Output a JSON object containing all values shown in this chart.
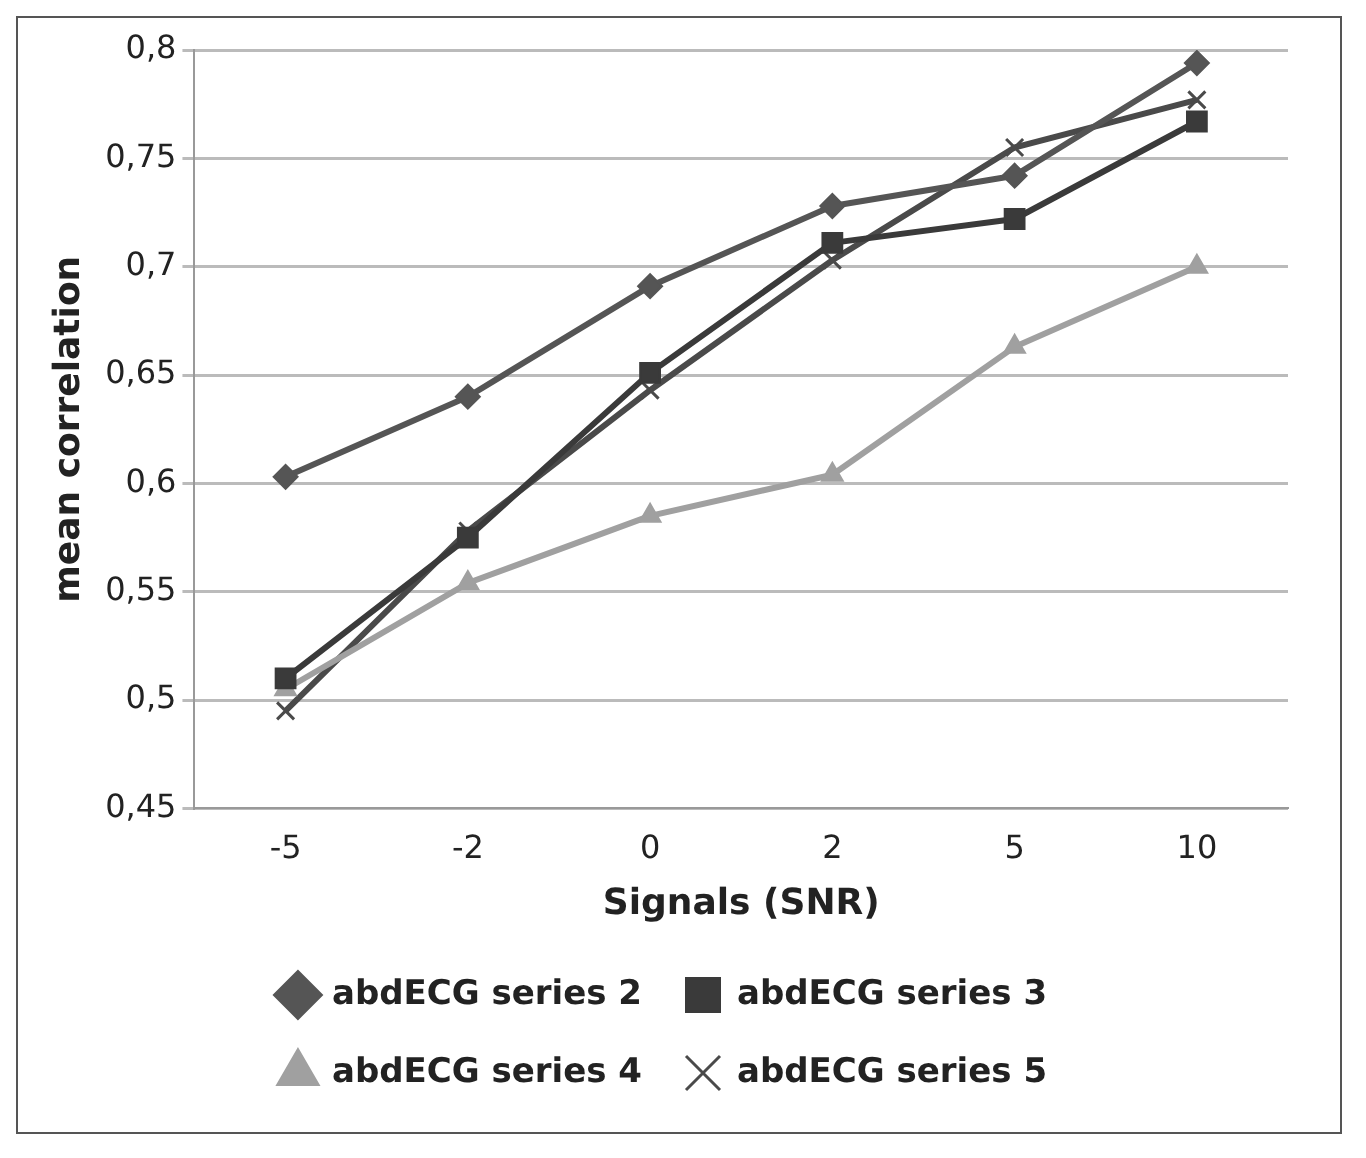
{
  "chart_data": {
    "type": "line",
    "xlabel": "Signals (SNR)",
    "ylabel": "mean correlation",
    "categories": [
      "-5",
      "-2",
      "0",
      "2",
      "5",
      "10"
    ],
    "series": [
      {
        "name": "abdECG series 2",
        "color": "#555555",
        "marker": "diamond",
        "values": [
          0.603,
          0.64,
          0.691,
          0.728,
          0.742,
          0.794
        ]
      },
      {
        "name": "abdECG series 3",
        "color": "#3a3a3a",
        "marker": "square",
        "values": [
          0.51,
          0.575,
          0.651,
          0.711,
          0.722,
          0.767
        ]
      },
      {
        "name": "abdECG series 4",
        "color": "#a0a0a0",
        "marker": "triangle",
        "values": [
          0.505,
          0.554,
          0.585,
          0.604,
          0.663,
          0.7
        ]
      },
      {
        "name": "abdECG series 5",
        "color": "#4a4a4a",
        "marker": "cross",
        "values": [
          0.495,
          0.578,
          0.643,
          0.703,
          0.755,
          0.777
        ]
      }
    ],
    "ylim": [
      0.45,
      0.8
    ],
    "yticks": [
      {
        "value": 0.45,
        "label": "0,45"
      },
      {
        "value": 0.5,
        "label": "0,5"
      },
      {
        "value": 0.55,
        "label": "0,55"
      },
      {
        "value": 0.6,
        "label": "0,6"
      },
      {
        "value": 0.65,
        "label": "0,65"
      },
      {
        "value": 0.7,
        "label": "0,7"
      },
      {
        "value": 0.75,
        "label": "0,75"
      },
      {
        "value": 0.8,
        "label": "0,8"
      }
    ],
    "grid": "y",
    "legend": "bottom"
  }
}
